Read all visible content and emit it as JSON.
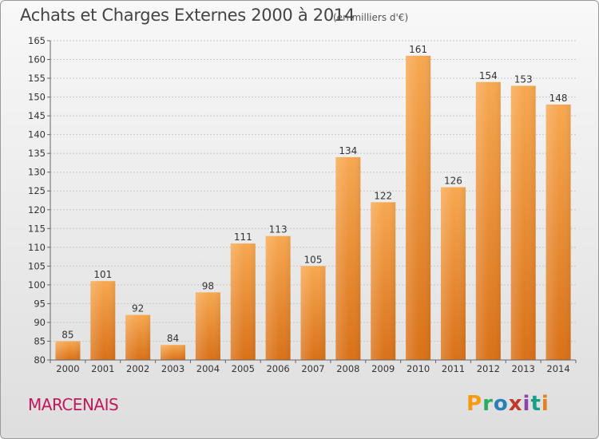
{
  "header": {
    "title": "Achats et Charges Externes 2000 à 2014",
    "unit": "(en milliers d'€)"
  },
  "footer": {
    "city": "MARCENAIS",
    "brand": "Proxiti",
    "brand_colors": [
      "#f39c12",
      "#27ae60",
      "#2980b9",
      "#c0392b",
      "#8e44ad",
      "#16a085",
      "#e67e22"
    ]
  },
  "chart_data": {
    "type": "bar",
    "title": "Achats et Charges Externes 2000 à 2014",
    "categories": [
      "2000",
      "2001",
      "2002",
      "2003",
      "2004",
      "2005",
      "2006",
      "2007",
      "2008",
      "2009",
      "2010",
      "2011",
      "2012",
      "2013",
      "2014"
    ],
    "values": [
      85,
      101,
      92,
      84,
      98,
      111,
      113,
      105,
      134,
      122,
      161,
      126,
      154,
      153,
      148
    ],
    "ylim": [
      80,
      165
    ],
    "yticks": [
      80,
      85,
      90,
      95,
      100,
      105,
      110,
      115,
      120,
      125,
      130,
      135,
      140,
      145,
      150,
      155,
      160,
      165
    ],
    "grid": true,
    "bar_color_top": "#f7a850",
    "bar_color_bottom": "#d97118"
  }
}
